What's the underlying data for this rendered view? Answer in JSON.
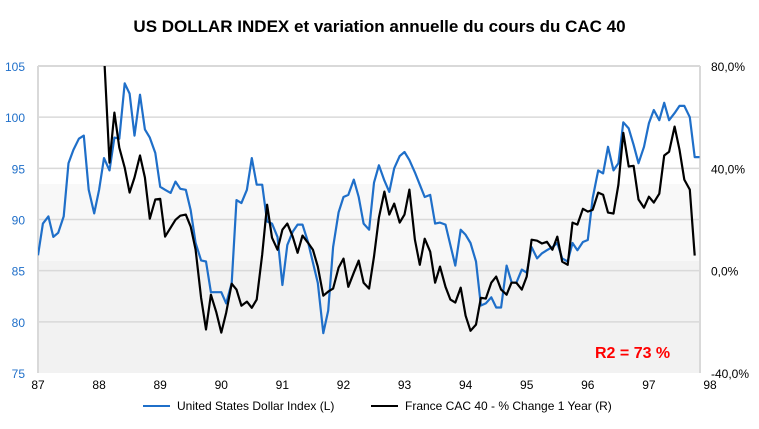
{
  "chart_data": {
    "type": "line",
    "title": "US DOLLAR INDEX et  variation annuelle du cours du CAC 40",
    "xlabel": "",
    "x_ticks": [
      "87",
      "88",
      "89",
      "90",
      "91",
      "92",
      "93",
      "94",
      "95",
      "96",
      "97",
      "98"
    ],
    "xlim": [
      87,
      98
    ],
    "y_left": {
      "ylim": [
        75,
        105
      ],
      "ticks": [
        "75",
        "80",
        "85",
        "90",
        "95",
        "100",
        "105"
      ],
      "color": "#1f6fc9"
    },
    "y_right": {
      "ylim": [
        -40,
        80
      ],
      "ticks": [
        "-40,0%",
        "0,0%",
        "40,0%",
        "80,0%"
      ],
      "color": "#000000"
    },
    "grid": true,
    "legend_position": "bottom",
    "annotation": {
      "text": "R2 = 73 %",
      "color": "#ff0000"
    },
    "series": [
      {
        "name": "United States Dollar Index (L)",
        "axis": "left",
        "color": "#1f6fc9",
        "points": [
          [
            87.0,
            86.5
          ],
          [
            87.08,
            89.6
          ],
          [
            87.17,
            90.3
          ],
          [
            87.25,
            88.3
          ],
          [
            87.33,
            88.7
          ],
          [
            87.42,
            90.3
          ],
          [
            87.5,
            95.5
          ],
          [
            87.58,
            96.8
          ],
          [
            87.67,
            97.9
          ],
          [
            87.75,
            98.2
          ],
          [
            87.83,
            92.9
          ],
          [
            87.92,
            90.6
          ],
          [
            88.0,
            92.9
          ],
          [
            88.08,
            96.0
          ],
          [
            88.17,
            94.8
          ],
          [
            88.25,
            98.0
          ],
          [
            88.33,
            97.9
          ],
          [
            88.42,
            103.3
          ],
          [
            88.5,
            102.3
          ],
          [
            88.58,
            98.2
          ],
          [
            88.67,
            102.2
          ],
          [
            88.75,
            98.8
          ],
          [
            88.83,
            98.0
          ],
          [
            88.92,
            96.5
          ],
          [
            89.0,
            93.2
          ],
          [
            89.08,
            92.9
          ],
          [
            89.17,
            92.6
          ],
          [
            89.25,
            93.7
          ],
          [
            89.33,
            93.0
          ],
          [
            89.42,
            92.9
          ],
          [
            89.5,
            90.9
          ],
          [
            89.58,
            87.7
          ],
          [
            89.67,
            86.0
          ],
          [
            89.75,
            85.9
          ],
          [
            89.83,
            82.9
          ],
          [
            89.92,
            82.9
          ],
          [
            90.0,
            82.9
          ],
          [
            90.08,
            81.8
          ],
          [
            90.17,
            83.8
          ],
          [
            90.25,
            91.9
          ],
          [
            90.33,
            91.6
          ],
          [
            90.42,
            92.9
          ],
          [
            90.5,
            96.0
          ],
          [
            90.58,
            93.4
          ],
          [
            90.67,
            93.4
          ],
          [
            90.75,
            89.8
          ],
          [
            90.83,
            89.6
          ],
          [
            90.92,
            88.3
          ],
          [
            91.0,
            83.6
          ],
          [
            91.08,
            87.5
          ],
          [
            91.17,
            88.8
          ],
          [
            91.25,
            89.5
          ],
          [
            91.33,
            89.5
          ],
          [
            91.42,
            87.8
          ],
          [
            91.5,
            85.8
          ],
          [
            91.58,
            83.8
          ],
          [
            91.67,
            78.9
          ],
          [
            91.75,
            81.1
          ],
          [
            91.83,
            87.3
          ],
          [
            91.92,
            90.7
          ],
          [
            92.0,
            92.2
          ],
          [
            92.08,
            92.4
          ],
          [
            92.17,
            93.9
          ],
          [
            92.25,
            92.2
          ],
          [
            92.33,
            89.6
          ],
          [
            92.42,
            89.0
          ],
          [
            92.5,
            93.6
          ],
          [
            92.58,
            95.3
          ],
          [
            92.67,
            93.8
          ],
          [
            92.75,
            92.7
          ],
          [
            92.83,
            95.0
          ],
          [
            92.92,
            96.2
          ],
          [
            93.0,
            96.6
          ],
          [
            93.08,
            95.8
          ],
          [
            93.17,
            94.6
          ],
          [
            93.25,
            93.4
          ],
          [
            93.33,
            92.2
          ],
          [
            93.42,
            92.4
          ],
          [
            93.5,
            89.6
          ],
          [
            93.58,
            89.7
          ],
          [
            93.67,
            89.5
          ],
          [
            93.75,
            87.5
          ],
          [
            93.83,
            85.5
          ],
          [
            93.92,
            89.0
          ],
          [
            94.0,
            88.5
          ],
          [
            94.08,
            87.7
          ],
          [
            94.17,
            85.9
          ],
          [
            94.25,
            81.6
          ],
          [
            94.33,
            81.8
          ],
          [
            94.42,
            82.4
          ],
          [
            94.5,
            81.4
          ],
          [
            94.58,
            81.4
          ],
          [
            94.67,
            85.5
          ],
          [
            94.75,
            83.9
          ],
          [
            94.83,
            83.8
          ],
          [
            94.92,
            85.1
          ],
          [
            95.0,
            84.8
          ],
          [
            95.08,
            87.3
          ],
          [
            95.17,
            86.2
          ],
          [
            95.25,
            86.7
          ],
          [
            95.33,
            87.0
          ],
          [
            95.42,
            87.3
          ],
          [
            95.5,
            87.7
          ],
          [
            95.58,
            86.2
          ],
          [
            95.67,
            85.9
          ],
          [
            95.75,
            87.7
          ],
          [
            95.83,
            87.0
          ],
          [
            95.92,
            87.8
          ],
          [
            96.0,
            88.0
          ],
          [
            96.08,
            92.1
          ],
          [
            96.17,
            94.8
          ],
          [
            96.25,
            94.5
          ],
          [
            96.33,
            97.1
          ],
          [
            96.42,
            94.8
          ],
          [
            96.5,
            95.5
          ],
          [
            96.58,
            99.5
          ],
          [
            96.67,
            98.9
          ],
          [
            96.75,
            97.3
          ],
          [
            96.83,
            95.5
          ],
          [
            96.92,
            97.1
          ],
          [
            97.0,
            99.4
          ],
          [
            97.08,
            100.7
          ],
          [
            97.17,
            99.7
          ],
          [
            97.25,
            101.4
          ],
          [
            97.33,
            99.7
          ],
          [
            97.42,
            100.4
          ],
          [
            97.5,
            101.1
          ],
          [
            97.58,
            101.1
          ],
          [
            97.67,
            100.0
          ],
          [
            97.75,
            96.1
          ],
          [
            97.83,
            96.1
          ]
        ]
      },
      {
        "name": "France CAC 40 - % Change 1 Year (R)",
        "axis": "right",
        "color": "#000000",
        "points": [
          [
            88.08,
            85.0
          ],
          [
            88.17,
            42.2
          ],
          [
            88.25,
            61.8
          ],
          [
            88.33,
            48.1
          ],
          [
            88.42,
            40.3
          ],
          [
            88.5,
            30.5
          ],
          [
            88.58,
            36.4
          ],
          [
            88.67,
            45.0
          ],
          [
            88.75,
            36.4
          ],
          [
            88.83,
            20.3
          ],
          [
            88.92,
            27.8
          ],
          [
            89.0,
            28.1
          ],
          [
            89.08,
            13.3
          ],
          [
            89.17,
            16.8
          ],
          [
            89.25,
            19.9
          ],
          [
            89.33,
            21.5
          ],
          [
            89.42,
            21.9
          ],
          [
            89.5,
            17.2
          ],
          [
            89.58,
            8.2
          ],
          [
            89.67,
            -10.6
          ],
          [
            89.75,
            -23.0
          ],
          [
            89.83,
            -9.4
          ],
          [
            89.92,
            -16.4
          ],
          [
            90.0,
            -24.2
          ],
          [
            90.08,
            -16.4
          ],
          [
            90.17,
            -5.1
          ],
          [
            90.25,
            -7.4
          ],
          [
            90.33,
            -13.7
          ],
          [
            90.42,
            -12.1
          ],
          [
            90.5,
            -14.5
          ],
          [
            90.58,
            -11.3
          ],
          [
            90.67,
            6.3
          ],
          [
            90.75,
            25.8
          ],
          [
            90.83,
            12.9
          ],
          [
            90.92,
            8.2
          ],
          [
            91.0,
            16.0
          ],
          [
            91.08,
            18.4
          ],
          [
            91.17,
            13.3
          ],
          [
            91.25,
            7.0
          ],
          [
            91.33,
            13.7
          ],
          [
            91.42,
            10.9
          ],
          [
            91.5,
            8.2
          ],
          [
            91.58,
            1.6
          ],
          [
            91.67,
            -9.8
          ],
          [
            91.75,
            -8.2
          ],
          [
            91.83,
            -7.0
          ],
          [
            91.92,
            1.2
          ],
          [
            92.0,
            4.7
          ],
          [
            92.08,
            -6.3
          ],
          [
            92.17,
            -0.8
          ],
          [
            92.25,
            3.9
          ],
          [
            92.33,
            -4.7
          ],
          [
            92.42,
            -7.0
          ],
          [
            92.5,
            5.5
          ],
          [
            92.58,
            20.7
          ],
          [
            92.67,
            30.9
          ],
          [
            92.75,
            21.9
          ],
          [
            92.83,
            26.2
          ],
          [
            92.92,
            18.8
          ],
          [
            93.0,
            21.9
          ],
          [
            93.08,
            31.7
          ],
          [
            93.17,
            12.1
          ],
          [
            93.25,
            2.3
          ],
          [
            93.33,
            12.5
          ],
          [
            93.42,
            7.4
          ],
          [
            93.5,
            -4.7
          ],
          [
            93.58,
            1.6
          ],
          [
            93.67,
            -6.3
          ],
          [
            93.75,
            -11.3
          ],
          [
            93.83,
            -12.5
          ],
          [
            93.92,
            -6.6
          ],
          [
            94.0,
            -17.6
          ],
          [
            94.08,
            -23.5
          ],
          [
            94.17,
            -21.1
          ],
          [
            94.25,
            -10.6
          ],
          [
            94.33,
            -10.9
          ],
          [
            94.42,
            -4.7
          ],
          [
            94.5,
            -2.3
          ],
          [
            94.58,
            -7.4
          ],
          [
            94.67,
            -9.4
          ],
          [
            94.75,
            -4.7
          ],
          [
            94.83,
            -4.7
          ],
          [
            94.92,
            -7.4
          ],
          [
            95.0,
            -2.3
          ],
          [
            95.08,
            12.1
          ],
          [
            95.17,
            11.7
          ],
          [
            95.25,
            10.6
          ],
          [
            95.33,
            11.3
          ],
          [
            95.42,
            8.2
          ],
          [
            95.5,
            13.3
          ],
          [
            95.58,
            3.5
          ],
          [
            95.67,
            2.3
          ],
          [
            95.75,
            18.8
          ],
          [
            95.83,
            18.0
          ],
          [
            95.92,
            24.2
          ],
          [
            96.0,
            23.1
          ],
          [
            96.08,
            23.8
          ],
          [
            96.17,
            30.5
          ],
          [
            96.25,
            29.7
          ],
          [
            96.33,
            22.7
          ],
          [
            96.42,
            22.3
          ],
          [
            96.5,
            33.6
          ],
          [
            96.58,
            53.9
          ],
          [
            96.67,
            40.7
          ],
          [
            96.75,
            41.0
          ],
          [
            96.83,
            27.8
          ],
          [
            96.92,
            24.6
          ],
          [
            97.0,
            28.9
          ],
          [
            97.08,
            26.6
          ],
          [
            97.17,
            30.1
          ],
          [
            97.25,
            45.0
          ],
          [
            97.33,
            46.5
          ],
          [
            97.42,
            56.3
          ],
          [
            97.5,
            47.3
          ],
          [
            97.58,
            35.6
          ],
          [
            97.67,
            31.7
          ],
          [
            97.75,
            5.9
          ]
        ]
      }
    ]
  }
}
